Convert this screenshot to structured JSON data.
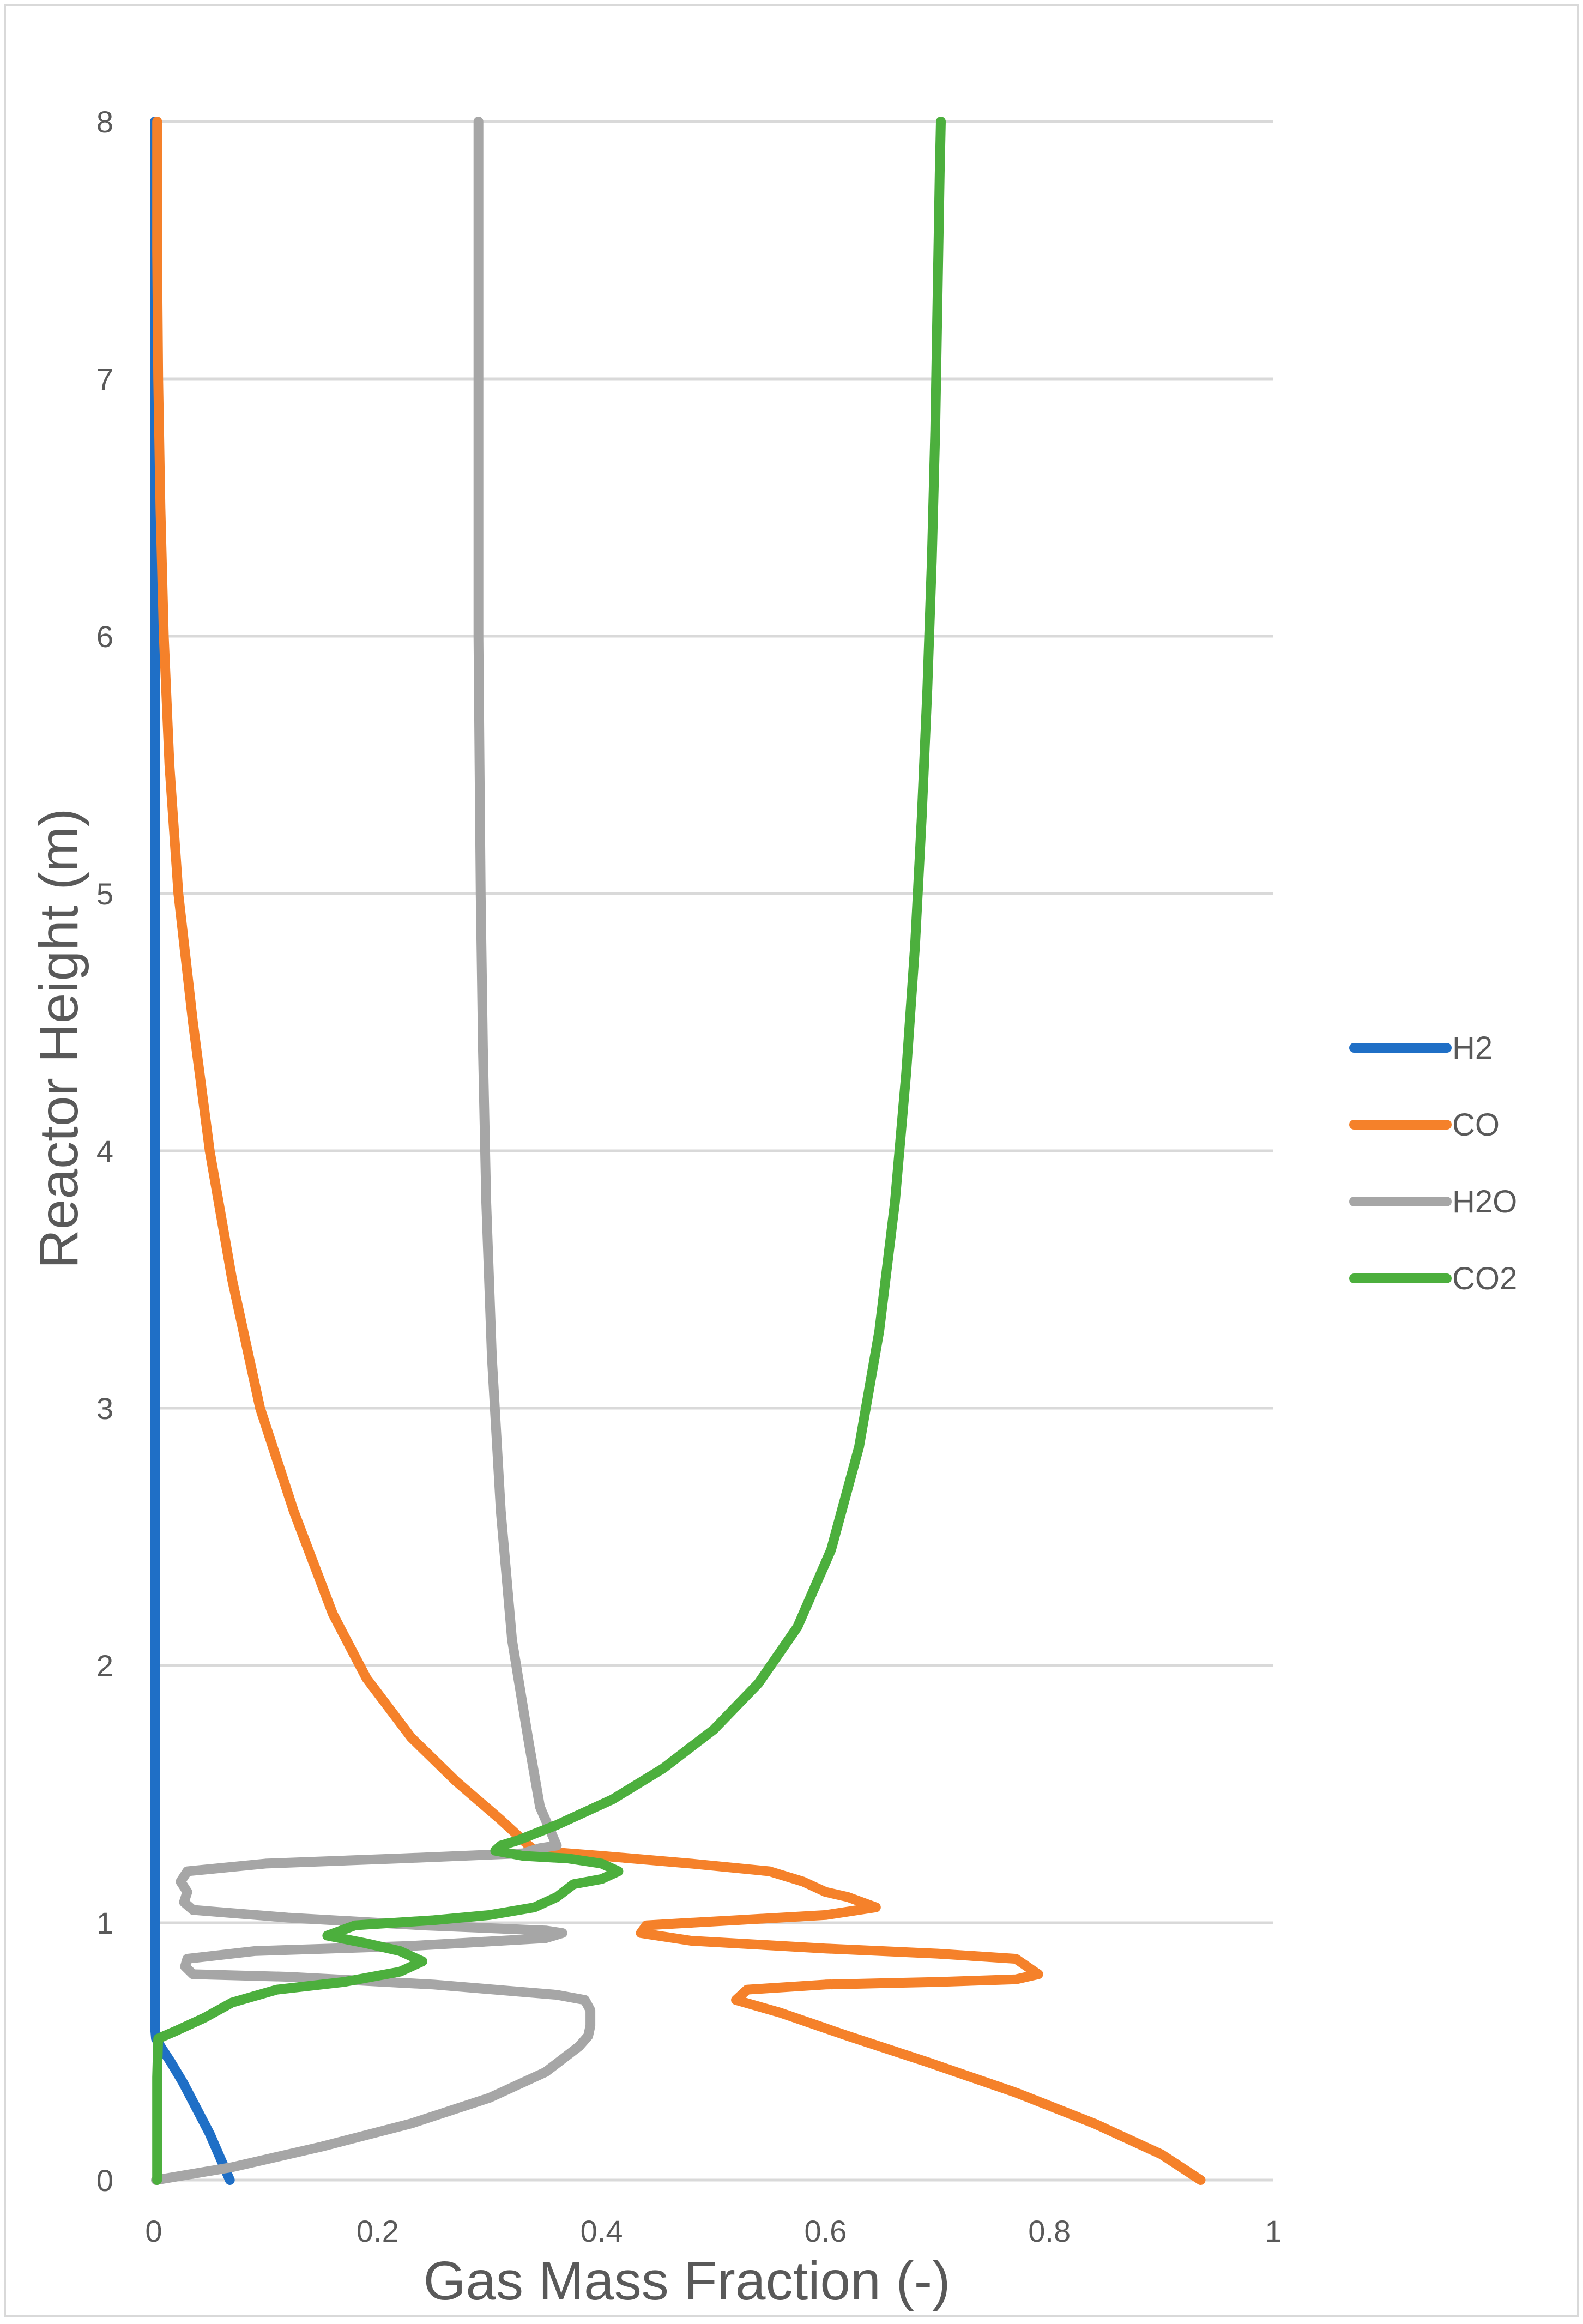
{
  "chart_data": {
    "type": "line",
    "title": "",
    "xlabel": "Gas Mass Fraction (-)",
    "ylabel": "Reactor Height (m)",
    "xlim": [
      0,
      1
    ],
    "ylim": [
      0,
      8
    ],
    "xticks": [
      0,
      0.2,
      0.4,
      0.6,
      0.8,
      1
    ],
    "xtick_labels": [
      "0",
      "0.2",
      "0.4",
      "0.6",
      "0.8",
      "1"
    ],
    "yticks": [
      0,
      1,
      2,
      3,
      4,
      5,
      6,
      7,
      8
    ],
    "ytick_labels": [
      "0",
      "1",
      "2",
      "3",
      "4",
      "5",
      "6",
      "7",
      "8"
    ],
    "grid": "horizontal",
    "legend_position": "right",
    "series": [
      {
        "name": "H2",
        "color": "#1f6fc6",
        "points": [
          [
            0.068,
            0
          ],
          [
            0.06,
            0.08
          ],
          [
            0.05,
            0.18
          ],
          [
            0.038,
            0.28
          ],
          [
            0.026,
            0.38
          ],
          [
            0.015,
            0.46
          ],
          [
            0.006,
            0.52
          ],
          [
            0.002,
            0.55
          ],
          [
            0.001,
            0.6
          ],
          [
            0.001,
            1
          ],
          [
            0.001,
            2
          ],
          [
            0.001,
            4
          ],
          [
            0.001,
            6
          ],
          [
            0.001,
            7
          ],
          [
            0.001,
            8
          ]
        ]
      },
      {
        "name": "CO",
        "color": "#f5812a",
        "points": [
          [
            0.935,
            0
          ],
          [
            0.9,
            0.1
          ],
          [
            0.84,
            0.22
          ],
          [
            0.77,
            0.34
          ],
          [
            0.69,
            0.46
          ],
          [
            0.62,
            0.56
          ],
          [
            0.56,
            0.65
          ],
          [
            0.52,
            0.7
          ],
          [
            0.53,
            0.74
          ],
          [
            0.6,
            0.76
          ],
          [
            0.7,
            0.77
          ],
          [
            0.77,
            0.78
          ],
          [
            0.79,
            0.8
          ],
          [
            0.77,
            0.86
          ],
          [
            0.7,
            0.88
          ],
          [
            0.6,
            0.9
          ],
          [
            0.48,
            0.93
          ],
          [
            0.435,
            0.96
          ],
          [
            0.44,
            0.99
          ],
          [
            0.52,
            1.01
          ],
          [
            0.6,
            1.03
          ],
          [
            0.645,
            1.06
          ],
          [
            0.62,
            1.1
          ],
          [
            0.6,
            1.12
          ],
          [
            0.58,
            1.16
          ],
          [
            0.55,
            1.2
          ],
          [
            0.48,
            1.23
          ],
          [
            0.4,
            1.26
          ],
          [
            0.34,
            1.28
          ],
          [
            0.33,
            1.32
          ],
          [
            0.31,
            1.4
          ],
          [
            0.27,
            1.55
          ],
          [
            0.23,
            1.72
          ],
          [
            0.19,
            1.95
          ],
          [
            0.16,
            2.2
          ],
          [
            0.125,
            2.6
          ],
          [
            0.095,
            3.0
          ],
          [
            0.07,
            3.5
          ],
          [
            0.05,
            4.0
          ],
          [
            0.035,
            4.5
          ],
          [
            0.022,
            5.0
          ],
          [
            0.014,
            5.5
          ],
          [
            0.009,
            6.0
          ],
          [
            0.006,
            6.5
          ],
          [
            0.004,
            7.0
          ],
          [
            0.003,
            7.5
          ],
          [
            0.003,
            8.0
          ]
        ]
      },
      {
        "name": "H2O",
        "color": "#a6a6a6",
        "points": [
          [
            0.002,
            0
          ],
          [
            0.07,
            0.05
          ],
          [
            0.15,
            0.13
          ],
          [
            0.23,
            0.22
          ],
          [
            0.3,
            0.32
          ],
          [
            0.35,
            0.42
          ],
          [
            0.38,
            0.52
          ],
          [
            0.388,
            0.56
          ],
          [
            0.39,
            0.6
          ],
          [
            0.39,
            0.66
          ],
          [
            0.385,
            0.7
          ],
          [
            0.36,
            0.72
          ],
          [
            0.25,
            0.76
          ],
          [
            0.12,
            0.79
          ],
          [
            0.035,
            0.8
          ],
          [
            0.028,
            0.83
          ],
          [
            0.03,
            0.86
          ],
          [
            0.09,
            0.89
          ],
          [
            0.23,
            0.91
          ],
          [
            0.35,
            0.94
          ],
          [
            0.365,
            0.96
          ],
          [
            0.35,
            0.97
          ],
          [
            0.24,
            0.99
          ],
          [
            0.12,
            1.02
          ],
          [
            0.035,
            1.05
          ],
          [
            0.027,
            1.08
          ],
          [
            0.03,
            1.12
          ],
          [
            0.024,
            1.16
          ],
          [
            0.03,
            1.2
          ],
          [
            0.1,
            1.23
          ],
          [
            0.22,
            1.25
          ],
          [
            0.33,
            1.27
          ],
          [
            0.345,
            1.29
          ],
          [
            0.36,
            1.3
          ],
          [
            0.345,
            1.45
          ],
          [
            0.335,
            1.7
          ],
          [
            0.32,
            2.1
          ],
          [
            0.31,
            2.6
          ],
          [
            0.302,
            3.2
          ],
          [
            0.297,
            3.8
          ],
          [
            0.294,
            4.4
          ],
          [
            0.292,
            5.0
          ],
          [
            0.291,
            5.5
          ],
          [
            0.29,
            6.0
          ],
          [
            0.29,
            6.5
          ],
          [
            0.29,
            7.0
          ],
          [
            0.29,
            7.5
          ],
          [
            0.29,
            8.0
          ]
        ]
      },
      {
        "name": "CO2",
        "color": "#4caf3d",
        "points": [
          [
            0.003,
            0
          ],
          [
            0.003,
            0.2
          ],
          [
            0.003,
            0.4
          ],
          [
            0.004,
            0.55
          ],
          [
            0.02,
            0.58
          ],
          [
            0.045,
            0.63
          ],
          [
            0.07,
            0.69
          ],
          [
            0.11,
            0.74
          ],
          [
            0.17,
            0.77
          ],
          [
            0.22,
            0.81
          ],
          [
            0.24,
            0.85
          ],
          [
            0.22,
            0.89
          ],
          [
            0.19,
            0.92
          ],
          [
            0.155,
            0.95
          ],
          [
            0.18,
            0.99
          ],
          [
            0.25,
            1.01
          ],
          [
            0.3,
            1.03
          ],
          [
            0.34,
            1.06
          ],
          [
            0.36,
            1.1
          ],
          [
            0.375,
            1.15
          ],
          [
            0.4,
            1.17
          ],
          [
            0.415,
            1.2
          ],
          [
            0.4,
            1.23
          ],
          [
            0.37,
            1.25
          ],
          [
            0.33,
            1.26
          ],
          [
            0.305,
            1.28
          ],
          [
            0.31,
            1.3
          ],
          [
            0.325,
            1.32
          ],
          [
            0.36,
            1.38
          ],
          [
            0.41,
            1.48
          ],
          [
            0.455,
            1.6
          ],
          [
            0.5,
            1.75
          ],
          [
            0.54,
            1.93
          ],
          [
            0.575,
            2.15
          ],
          [
            0.605,
            2.45
          ],
          [
            0.63,
            2.85
          ],
          [
            0.648,
            3.3
          ],
          [
            0.662,
            3.8
          ],
          [
            0.672,
            4.3
          ],
          [
            0.68,
            4.8
          ],
          [
            0.686,
            5.3
          ],
          [
            0.691,
            5.8
          ],
          [
            0.695,
            6.3
          ],
          [
            0.698,
            6.8
          ],
          [
            0.7,
            7.3
          ],
          [
            0.702,
            7.8
          ],
          [
            0.703,
            8.0
          ]
        ]
      }
    ]
  }
}
